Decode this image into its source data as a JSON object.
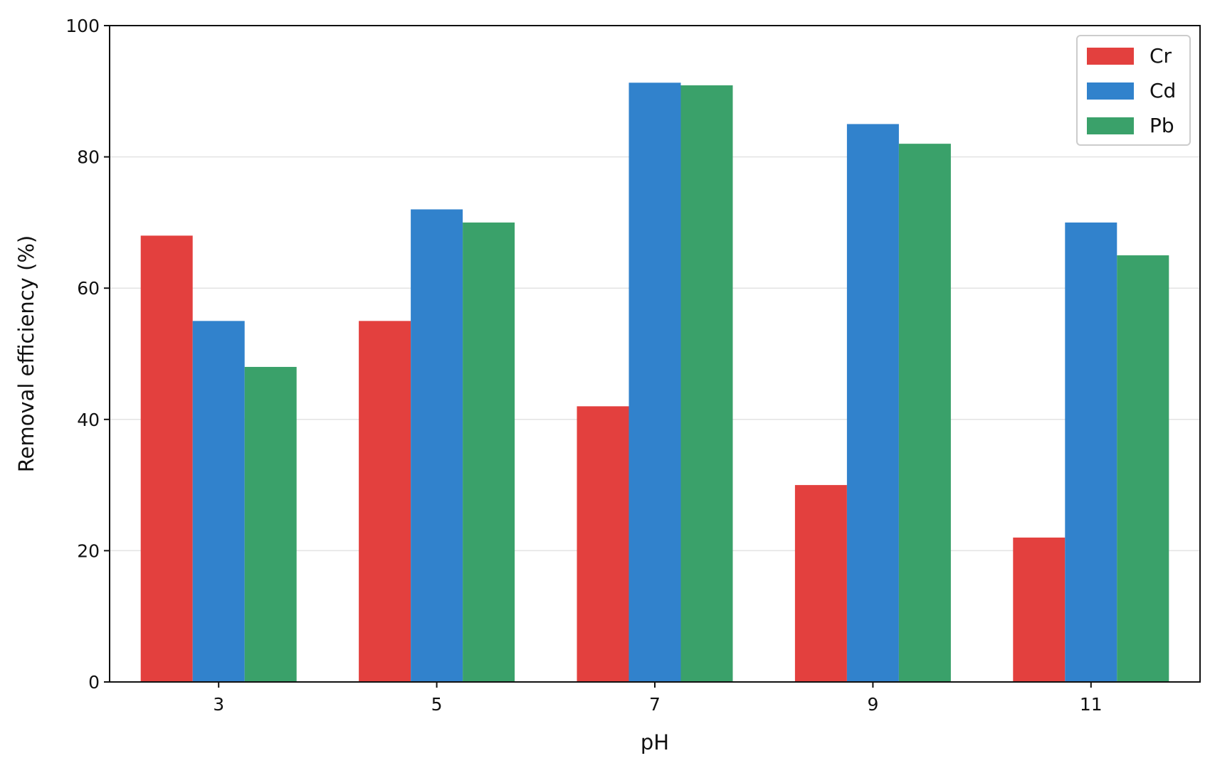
{
  "chart_data": {
    "type": "bar",
    "categories": [
      "3",
      "5",
      "7",
      "9",
      "11"
    ],
    "series": [
      {
        "name": "Cr",
        "color": "#e3403e",
        "values": [
          68,
          55,
          42,
          30,
          22
        ]
      },
      {
        "name": "Cd",
        "color": "#3182cc",
        "values": [
          55,
          72,
          91.3,
          85,
          70
        ]
      },
      {
        "name": "Pb",
        "color": "#3aa16a",
        "values": [
          48,
          70,
          90.9,
          82,
          65
        ]
      }
    ],
    "title": "",
    "xlabel": "pH",
    "ylabel": "Removal efficiency (%)",
    "ylim": [
      0,
      100
    ],
    "yticks": [
      0,
      20,
      40,
      60,
      80,
      100
    ],
    "grid": "horizontal",
    "legend_position": "top-right"
  }
}
